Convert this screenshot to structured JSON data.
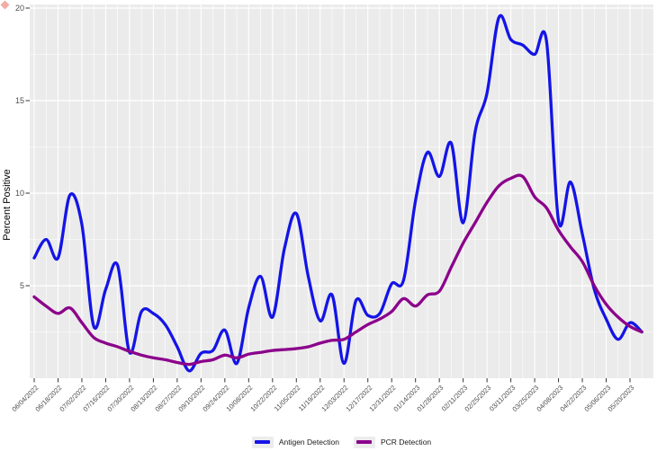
{
  "corner_marker": {
    "color": "#e04a38"
  },
  "chart_data": {
    "type": "line",
    "title": "",
    "xlabel": "",
    "ylabel": "Percent Positive",
    "ylim": [
      0,
      20.4
    ],
    "y_ticks": [
      5,
      10,
      15,
      20
    ],
    "grid": true,
    "legend_position": "bottom",
    "panel_background": "#ebebeb",
    "grid_color": "#ffffff",
    "x_tick_labels": [
      "06/04/2022",
      "06/18/2022",
      "07/02/2022",
      "07/16/2022",
      "07/30/2022",
      "08/13/2022",
      "08/27/2022",
      "09/10/2022",
      "09/24/2022",
      "10/08/2022",
      "10/22/2022",
      "11/05/2022",
      "11/19/2022",
      "12/03/2022",
      "12/17/2022",
      "12/31/2022",
      "01/14/2023",
      "01/28/2023",
      "02/11/2023",
      "02/25/2023",
      "03/11/2023",
      "03/25/2023",
      "04/08/2023",
      "04/22/2023",
      "05/06/2023",
      "05/20/2023"
    ],
    "dates": [
      "06/04/2022",
      "06/11/2022",
      "06/18/2022",
      "06/25/2022",
      "07/02/2022",
      "07/09/2022",
      "07/16/2022",
      "07/23/2022",
      "07/30/2022",
      "08/06/2022",
      "08/13/2022",
      "08/20/2022",
      "08/27/2022",
      "09/03/2022",
      "09/10/2022",
      "09/17/2022",
      "09/24/2022",
      "10/01/2022",
      "10/08/2022",
      "10/15/2022",
      "10/22/2022",
      "10/29/2022",
      "11/05/2022",
      "11/12/2022",
      "11/19/2022",
      "11/26/2022",
      "12/03/2022",
      "12/10/2022",
      "12/17/2022",
      "12/24/2022",
      "12/31/2022",
      "01/07/2023",
      "01/14/2023",
      "01/21/2023",
      "01/28/2023",
      "02/04/2023",
      "02/11/2023",
      "02/18/2023",
      "02/25/2023",
      "03/04/2023",
      "03/11/2023",
      "03/18/2023",
      "03/25/2023",
      "04/01/2023",
      "04/08/2023",
      "04/15/2023",
      "04/22/2023",
      "04/29/2023",
      "05/06/2023",
      "05/13/2023",
      "05/20/2023",
      "05/27/2023"
    ],
    "series": [
      {
        "name": "Antigen Detection",
        "color": "#1414e6",
        "values": [
          6.5,
          7.5,
          6.5,
          9.9,
          8.3,
          2.8,
          4.8,
          6.1,
          1.4,
          3.6,
          3.5,
          2.9,
          1.7,
          0.4,
          1.35,
          1.5,
          2.6,
          0.8,
          3.8,
          5.5,
          3.3,
          7.0,
          8.9,
          5.5,
          3.1,
          4.5,
          0.8,
          4.2,
          3.4,
          3.5,
          5.1,
          5.3,
          9.6,
          12.2,
          10.9,
          12.7,
          8.4,
          13.3,
          15.4,
          19.5,
          18.3,
          18.0,
          17.5,
          18.2,
          8.5,
          10.6,
          7.8,
          4.8,
          3.2,
          2.1,
          3.0,
          2.5
        ]
      },
      {
        "name": "PCR Detection",
        "color": "#8b008b",
        "values": [
          4.4,
          3.9,
          3.5,
          3.8,
          3.0,
          2.2,
          1.9,
          1.7,
          1.45,
          1.25,
          1.1,
          1.0,
          0.85,
          0.75,
          0.9,
          1.0,
          1.25,
          1.1,
          1.3,
          1.4,
          1.5,
          1.55,
          1.6,
          1.7,
          1.9,
          2.05,
          2.1,
          2.5,
          2.9,
          3.2,
          3.6,
          4.3,
          3.9,
          4.5,
          4.7,
          6.0,
          7.3,
          8.4,
          9.5,
          10.4,
          10.8,
          10.9,
          9.8,
          9.2,
          8.0,
          7.1,
          6.3,
          5.0,
          4.0,
          3.3,
          2.8,
          2.5
        ]
      }
    ]
  }
}
